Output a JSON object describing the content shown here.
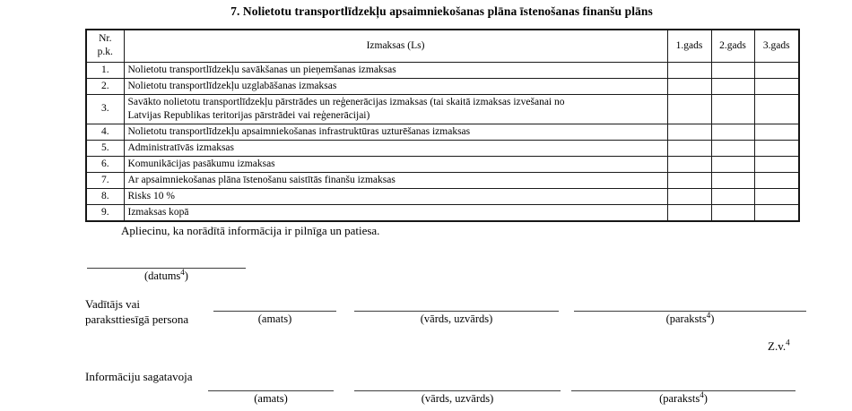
{
  "title": "7. Nolietotu transportlīdzekļu apsaimniekošanas plāna īstenošanas finanšu plāns",
  "table": {
    "headers": {
      "nr": "Nr.\np.k.",
      "izmaksas": "Izmaksas (Ls)",
      "year1": "1.gads",
      "year2": "2.gads",
      "year3": "3.gads"
    },
    "rows": [
      {
        "nr": "1.",
        "label": "Nolietotu transportlīdzekļu savākšanas un pieņemšanas izmaksas",
        "year1": "",
        "year2": "",
        "year3": ""
      },
      {
        "nr": "2.",
        "label": "Nolietotu transportlīdzekļu uzglabāšanas izmaksas",
        "year1": "",
        "year2": "",
        "year3": ""
      },
      {
        "nr": "3.",
        "label": "Savākto nolietotu transportlīdzekļu pārstrādes un reģenerācijas izmaksas (tai skaitā izmaksas izvešanai no\nLatvijas Republikas teritorijas pārstrādei vai reģenerācijai)",
        "year1": "",
        "year2": "",
        "year3": ""
      },
      {
        "nr": "4.",
        "label": "Nolietotu transportlīdzekļu apsaimniekošanas infrastruktūras uzturēšanas izmaksas",
        "year1": "",
        "year2": "",
        "year3": ""
      },
      {
        "nr": "5.",
        "label": "Administratīvās izmaksas",
        "year1": "",
        "year2": "",
        "year3": ""
      },
      {
        "nr": "6.",
        "label": "Komunikācijas pasākumu izmaksas",
        "year1": "",
        "year2": "",
        "year3": ""
      },
      {
        "nr": "7.",
        "label": "Ar apsaimniekošanas plāna īstenošanu saistītās finanšu izmaksas",
        "year1": "",
        "year2": "",
        "year3": ""
      },
      {
        "nr": "8.",
        "label": "Risks 10 %",
        "year1": "",
        "year2": "",
        "year3": ""
      },
      {
        "nr": "9.",
        "label": "Izmaksas kopā",
        "year1": "",
        "year2": "",
        "year3": ""
      }
    ]
  },
  "statement": "Apliecinu, ka norādītā informācija ir pilnīga un patiesa.",
  "signature": {
    "datums_label": {
      "pre": "(datums",
      "sup": "4",
      "post": ")"
    },
    "leader_role": "Vadītājs vai\nparaksttiesīgā persona",
    "preparer_role": "Informāciju sagatavoja",
    "amats_label": "(amats)",
    "vards_label": "(vārds, uzvārds)",
    "paraksts_label": {
      "pre": "(paraksts",
      "sup": "4",
      "post": ")"
    },
    "zv_label": {
      "pre": "Z.v.",
      "sup": "4",
      "post": ""
    }
  }
}
